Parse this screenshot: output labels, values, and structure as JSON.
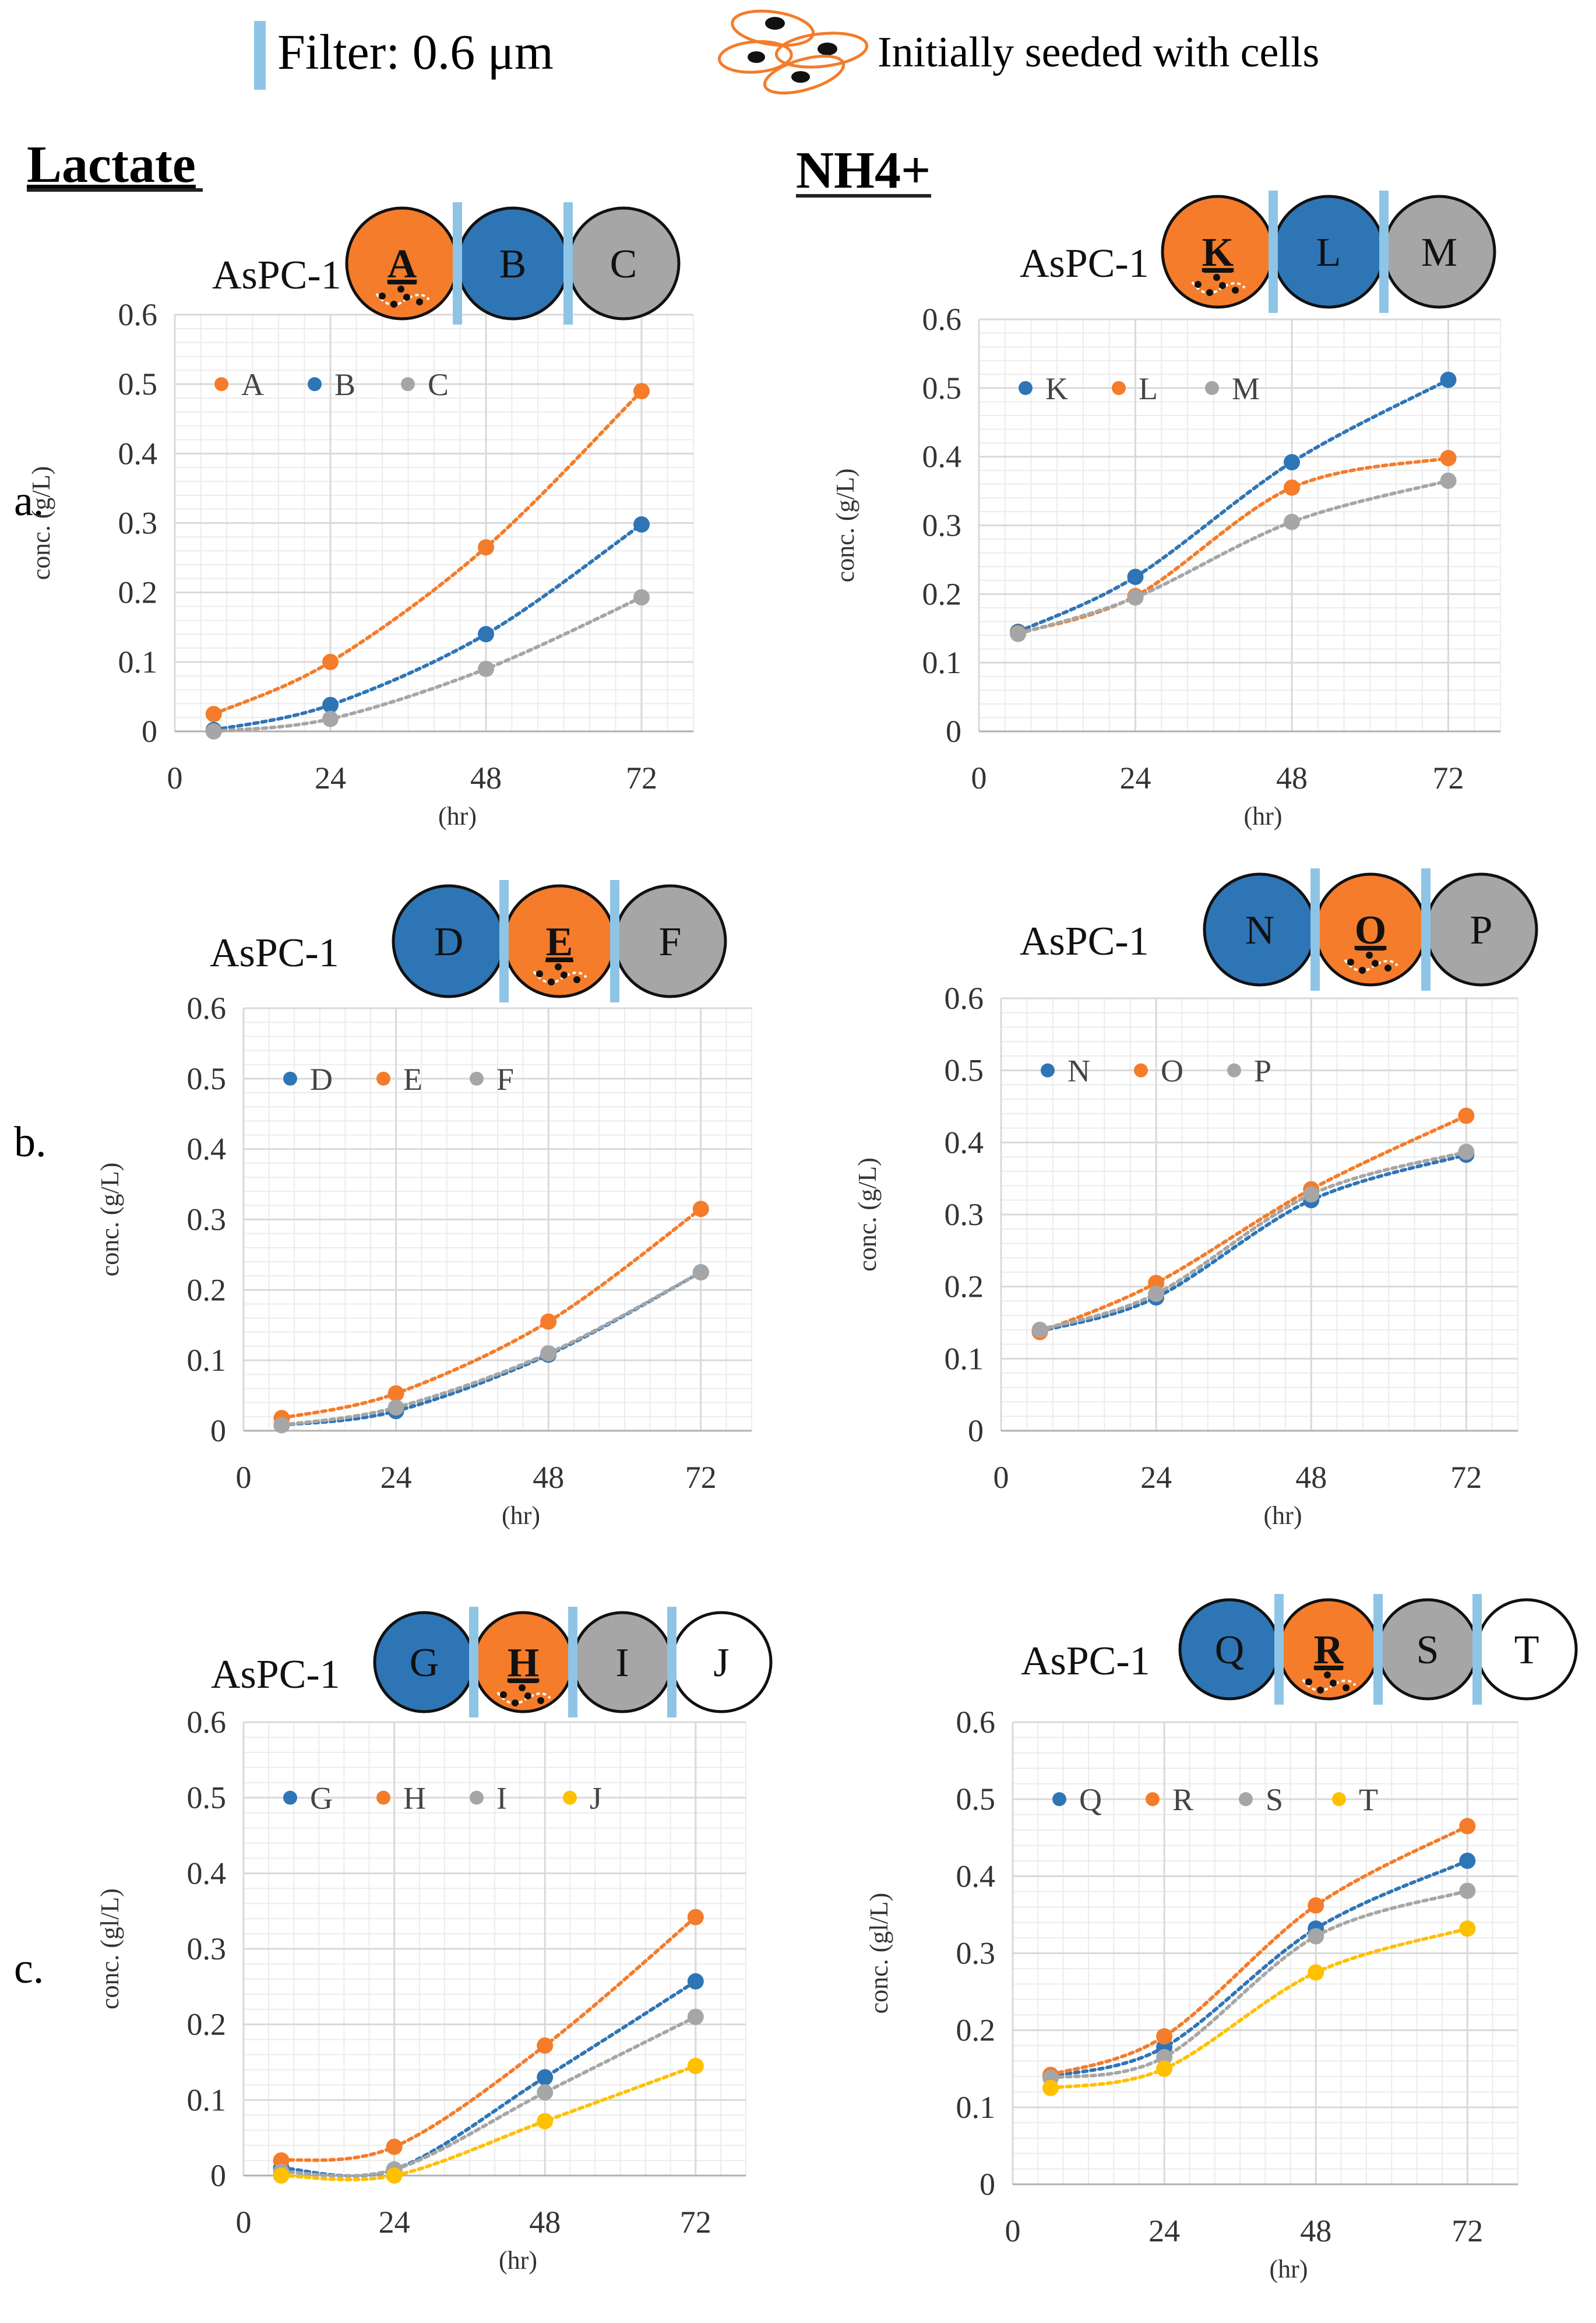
{
  "colors": {
    "blue": "#2e75b6",
    "orange": "#f47c2a",
    "gray": "#a6a6a6",
    "yellow": "#ffc000",
    "filter": "#8ec5e6",
    "grid": "#d9d9d9",
    "axis": "#b0b0b0"
  },
  "header": {
    "filter_label": "Filter: 0.6 μm",
    "seeded_label": "Initially seeded with cells"
  },
  "columns": {
    "left": "Lactate",
    "right": "NH4+"
  },
  "row_labels": [
    "a.",
    "b.",
    "c."
  ],
  "chart_data": [
    {
      "id": "a-lactate",
      "type": "line",
      "row": 0,
      "col": 0,
      "cell_line": "AsPC-1",
      "wells": [
        {
          "label": "A",
          "fill": "orange",
          "seeded": true
        },
        {
          "label": "B",
          "fill": "blue",
          "seeded": false
        },
        {
          "label": "C",
          "fill": "gray",
          "seeded": false
        }
      ],
      "filters_after": [
        0,
        1
      ],
      "xlabel": "(hr)",
      "ylabel": "conc. (g/L)",
      "xticks": [
        0,
        24,
        48,
        72
      ],
      "xlim": [
        0,
        80
      ],
      "yticks": [
        0,
        0.1,
        0.2,
        0.3,
        0.4,
        0.5,
        0.6
      ],
      "ylim": [
        0,
        0.6
      ],
      "legend": "top-left",
      "grid": true,
      "x": [
        6,
        24,
        48,
        72
      ],
      "series": [
        {
          "name": "A",
          "color": "orange",
          "values": [
            0.025,
            0.1,
            0.265,
            0.49
          ]
        },
        {
          "name": "B",
          "color": "blue",
          "values": [
            0.002,
            0.038,
            0.14,
            0.298
          ]
        },
        {
          "name": "C",
          "color": "gray",
          "values": [
            0.0,
            0.018,
            0.09,
            0.193
          ]
        }
      ]
    },
    {
      "id": "a-nh4",
      "type": "line",
      "row": 0,
      "col": 1,
      "cell_line": "AsPC-1",
      "wells": [
        {
          "label": "K",
          "fill": "orange",
          "seeded": true
        },
        {
          "label": "L",
          "fill": "blue",
          "seeded": false
        },
        {
          "label": "M",
          "fill": "gray",
          "seeded": false
        }
      ],
      "filters_after": [
        0,
        1
      ],
      "xlabel": "(hr)",
      "ylabel": "conc. (g/L)",
      "xticks": [
        0,
        24,
        48,
        72
      ],
      "xlim": [
        0,
        80
      ],
      "yticks": [
        0,
        0.1,
        0.2,
        0.3,
        0.4,
        0.5,
        0.6
      ],
      "ylim": [
        0,
        0.6
      ],
      "legend": "top-left",
      "grid": true,
      "x": [
        6,
        24,
        48,
        72
      ],
      "series": [
        {
          "name": "K",
          "color": "blue",
          "values": [
            0.145,
            0.225,
            0.392,
            0.512
          ]
        },
        {
          "name": "L",
          "color": "orange",
          "values": [
            0.143,
            0.197,
            0.355,
            0.398
          ]
        },
        {
          "name": "M",
          "color": "gray",
          "values": [
            0.142,
            0.195,
            0.305,
            0.365
          ]
        }
      ]
    },
    {
      "id": "b-lactate",
      "type": "line",
      "row": 1,
      "col": 0,
      "cell_line": "AsPC-1",
      "wells": [
        {
          "label": "D",
          "fill": "blue",
          "seeded": false
        },
        {
          "label": "E",
          "fill": "orange",
          "seeded": true
        },
        {
          "label": "F",
          "fill": "gray",
          "seeded": false
        }
      ],
      "filters_after": [
        0,
        1
      ],
      "xlabel": "(hr)",
      "ylabel": "conc. (g/L)",
      "xticks": [
        0,
        24,
        48,
        72
      ],
      "xlim": [
        0,
        80
      ],
      "yticks": [
        0,
        0.1,
        0.2,
        0.3,
        0.4,
        0.5,
        0.6
      ],
      "ylim": [
        0,
        0.6
      ],
      "legend": "top-left",
      "grid": true,
      "x": [
        6,
        24,
        48,
        72
      ],
      "series": [
        {
          "name": "D",
          "color": "blue",
          "values": [
            0.008,
            0.028,
            0.108,
            0.225
          ]
        },
        {
          "name": "E",
          "color": "orange",
          "values": [
            0.018,
            0.053,
            0.155,
            0.315
          ]
        },
        {
          "name": "F",
          "color": "gray",
          "values": [
            0.008,
            0.033,
            0.11,
            0.225
          ]
        }
      ]
    },
    {
      "id": "b-nh4",
      "type": "line",
      "row": 1,
      "col": 1,
      "cell_line": "AsPC-1",
      "wells": [
        {
          "label": "N",
          "fill": "blue",
          "seeded": false
        },
        {
          "label": "O",
          "fill": "orange",
          "seeded": true
        },
        {
          "label": "P",
          "fill": "gray",
          "seeded": false
        }
      ],
      "filters_after": [
        0,
        1
      ],
      "xlabel": "(hr)",
      "ylabel": "conc. (g/L)",
      "xticks": [
        0,
        24,
        48,
        72
      ],
      "xlim": [
        0,
        80
      ],
      "yticks": [
        0,
        0.1,
        0.2,
        0.3,
        0.4,
        0.5,
        0.6
      ],
      "ylim": [
        0,
        0.6
      ],
      "legend": "top-left",
      "grid": true,
      "x": [
        6,
        24,
        48,
        72
      ],
      "series": [
        {
          "name": "N",
          "color": "blue",
          "values": [
            0.138,
            0.185,
            0.32,
            0.383
          ]
        },
        {
          "name": "O",
          "color": "orange",
          "values": [
            0.137,
            0.205,
            0.335,
            0.437
          ]
        },
        {
          "name": "P",
          "color": "gray",
          "values": [
            0.14,
            0.19,
            0.328,
            0.387
          ]
        }
      ]
    },
    {
      "id": "c-lactate",
      "type": "line",
      "row": 2,
      "col": 0,
      "cell_line": "AsPC-1",
      "wells": [
        {
          "label": "G",
          "fill": "blue",
          "seeded": false
        },
        {
          "label": "H",
          "fill": "orange",
          "seeded": true
        },
        {
          "label": "I",
          "fill": "gray",
          "seeded": false
        },
        {
          "label": "J",
          "fill": "white",
          "seeded": false
        }
      ],
      "filters_after": [
        0,
        1,
        2
      ],
      "xlabel": "(hr)",
      "ylabel": "conc. (gl/L)",
      "xticks": [
        0,
        24,
        48,
        72
      ],
      "xlim": [
        0,
        80
      ],
      "yticks": [
        0,
        0.1,
        0.2,
        0.3,
        0.4,
        0.5,
        0.6
      ],
      "ylim": [
        0,
        0.6
      ],
      "legend": "top-left",
      "grid": true,
      "x": [
        6,
        24,
        48,
        72
      ],
      "series": [
        {
          "name": "G",
          "color": "blue",
          "values": [
            0.01,
            0.008,
            0.13,
            0.257
          ]
        },
        {
          "name": "H",
          "color": "orange",
          "values": [
            0.02,
            0.038,
            0.172,
            0.342
          ]
        },
        {
          "name": "I",
          "color": "gray",
          "values": [
            0.005,
            0.008,
            0.11,
            0.21
          ]
        },
        {
          "name": "J",
          "color": "yellow",
          "values": [
            0.0,
            0.0,
            0.072,
            0.145
          ]
        }
      ]
    },
    {
      "id": "c-nh4",
      "type": "line",
      "row": 2,
      "col": 1,
      "cell_line": "AsPC-1",
      "wells": [
        {
          "label": "Q",
          "fill": "blue",
          "seeded": false
        },
        {
          "label": "R",
          "fill": "orange",
          "seeded": true
        },
        {
          "label": "S",
          "fill": "gray",
          "seeded": false
        },
        {
          "label": "T",
          "fill": "white",
          "seeded": false
        }
      ],
      "filters_after": [
        0,
        1,
        2
      ],
      "xlabel": "(hr)",
      "ylabel": "conc. (gl/L)",
      "xticks": [
        0,
        24,
        48,
        72
      ],
      "xlim": [
        0,
        80
      ],
      "yticks": [
        0,
        0.1,
        0.2,
        0.3,
        0.4,
        0.5,
        0.6
      ],
      "ylim": [
        0,
        0.6
      ],
      "legend": "top-left",
      "grid": true,
      "x": [
        6,
        24,
        48,
        72
      ],
      "series": [
        {
          "name": "Q",
          "color": "blue",
          "values": [
            0.14,
            0.178,
            0.332,
            0.42
          ]
        },
        {
          "name": "R",
          "color": "orange",
          "values": [
            0.142,
            0.192,
            0.362,
            0.465
          ]
        },
        {
          "name": "S",
          "color": "gray",
          "values": [
            0.138,
            0.165,
            0.322,
            0.381
          ]
        },
        {
          "name": "T",
          "color": "yellow",
          "values": [
            0.125,
            0.15,
            0.275,
            0.332
          ]
        }
      ]
    }
  ]
}
